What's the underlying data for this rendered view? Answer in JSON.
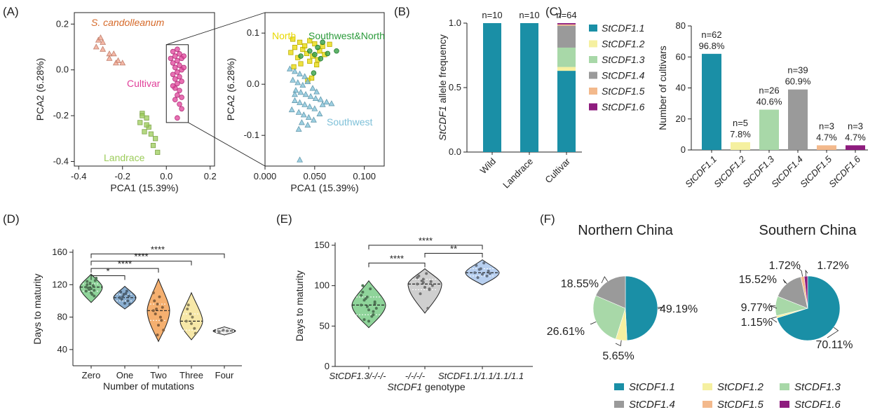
{
  "panels": [
    "(A)",
    "(B)",
    "(C)",
    "(D)",
    "(E)",
    "(F)"
  ],
  "colors": {
    "cdf11": "#1a8fa6",
    "cdf12": "#f5f0a0",
    "cdf13": "#a8d8a8",
    "cdf14": "#9a9a9a",
    "cdf15": "#f3b98c",
    "cdf16": "#8e1c7e",
    "wild": "#f0a08a",
    "landrace": "#9ccc5a",
    "cultivar": "#e0409a",
    "north": "#e8d800",
    "southwest": "#7ec0d8",
    "swnorth": "#2a9a3a",
    "zero": "#8fd49a",
    "one": "#8aaed0",
    "two": "#f5b070",
    "three": "#f7e8a8",
    "four": "#e8e8e8",
    "e_g1": "#8fd49a",
    "e_g2": "#cfcfcf",
    "e_g3": "#b8d0f0"
  },
  "chart_data": [
    {
      "id": "A1",
      "type": "scatter",
      "xlabel": "PCA1 (15.39%)",
      "ylabel": "PCA2 (6.28%)",
      "xlim": [
        -0.42,
        0.22
      ],
      "ylim": [
        -0.42,
        0.25
      ],
      "xticks": [
        "-0.4",
        "-0.2",
        "0.0",
        "0.2"
      ],
      "xtick_values": [
        -0.4,
        -0.2,
        0.0,
        0.2
      ],
      "yticks": [
        "-0.4",
        "-0.2",
        "0.0",
        "0.2"
      ],
      "ytick_values": [
        -0.4,
        -0.2,
        0.0,
        0.2
      ],
      "labels": {
        "wild": "S. candolleanum",
        "cultivar": "Cultivar",
        "landrace": "Landrace"
      },
      "series": [
        {
          "key": "wild",
          "marker": "triangle",
          "points": [
            [
              -0.31,
              0.13
            ],
            [
              -0.29,
              0.12
            ],
            [
              -0.32,
              0.1
            ],
            [
              -0.29,
              0.09
            ],
            [
              -0.26,
              0.07
            ],
            [
              -0.24,
              0.07
            ],
            [
              -0.26,
              0.05
            ],
            [
              -0.22,
              0.04
            ],
            [
              -0.2,
              0.03
            ],
            [
              -0.23,
              0.03
            ],
            [
              -0.3,
              0.14
            ]
          ]
        },
        {
          "key": "landrace",
          "marker": "square",
          "points": [
            [
              -0.11,
              -0.19
            ],
            [
              -0.09,
              -0.21
            ],
            [
              -0.12,
              -0.23
            ],
            [
              -0.08,
              -0.25
            ],
            [
              -0.1,
              -0.27
            ],
            [
              -0.07,
              -0.28
            ],
            [
              -0.05,
              -0.3
            ],
            [
              -0.06,
              -0.33
            ],
            [
              -0.04,
              -0.36
            ],
            [
              -0.09,
              -0.24
            ],
            [
              -0.11,
              -0.2
            ]
          ]
        },
        {
          "key": "cultivar",
          "marker": "circle",
          "points": [
            [
              0.03,
              0.08
            ],
            [
              0.05,
              0.09
            ],
            [
              0.06,
              0.07
            ],
            [
              0.04,
              0.06
            ],
            [
              0.07,
              0.05
            ],
            [
              0.05,
              0.04
            ],
            [
              0.03,
              0.03
            ],
            [
              0.06,
              0.02
            ],
            [
              0.04,
              0.01
            ],
            [
              0.07,
              0.0
            ],
            [
              0.05,
              -0.01
            ],
            [
              0.03,
              -0.02
            ],
            [
              0.06,
              -0.03
            ],
            [
              0.04,
              -0.04
            ],
            [
              0.07,
              -0.05
            ],
            [
              0.05,
              -0.06
            ],
            [
              0.04,
              -0.08
            ],
            [
              0.06,
              -0.09
            ],
            [
              0.05,
              -0.11
            ],
            [
              0.04,
              -0.13
            ],
            [
              0.06,
              -0.15
            ],
            [
              0.07,
              -0.17
            ],
            [
              0.05,
              -0.21
            ],
            [
              0.08,
              0.06
            ],
            [
              0.02,
              0.05
            ],
            [
              0.08,
              0.01
            ],
            [
              0.03,
              -0.07
            ],
            [
              0.07,
              -0.12
            ]
          ]
        }
      ],
      "zoom_box": {
        "xlim": [
          0.0,
          0.1
        ],
        "ylim": [
          -0.23,
          0.11
        ]
      }
    },
    {
      "id": "A2",
      "type": "scatter",
      "xlabel": "PCA1 (15.39%)",
      "ylabel": "PCA2 (6.28%)",
      "xlim": [
        0.0,
        0.12
      ],
      "ylim": [
        -0.16,
        0.14
      ],
      "xticks": [
        "0.000",
        "0.050",
        "0.100"
      ],
      "xtick_values": [
        0.0,
        0.05,
        0.1
      ],
      "yticks": [
        "-0.1",
        "0.0",
        "0.1"
      ],
      "ytick_values": [
        -0.1,
        0.0,
        0.1
      ],
      "labels": {
        "north": "North",
        "swnorth": "Southwest&North",
        "southwest": "Southwest"
      },
      "series": [
        {
          "key": "north",
          "marker": "square",
          "points": [
            [
              0.028,
              0.088
            ],
            [
              0.035,
              0.082
            ],
            [
              0.045,
              0.085
            ],
            [
              0.05,
              0.079
            ],
            [
              0.03,
              0.072
            ],
            [
              0.038,
              0.068
            ],
            [
              0.055,
              0.065
            ],
            [
              0.026,
              0.062
            ],
            [
              0.042,
              0.06
            ],
            [
              0.048,
              0.055
            ],
            [
              0.06,
              0.058
            ],
            [
              0.033,
              0.052
            ],
            [
              0.053,
              0.048
            ],
            [
              0.045,
              0.045
            ],
            [
              0.036,
              0.04
            ],
            [
              0.052,
              0.038
            ],
            [
              0.029,
              0.034
            ],
            [
              0.058,
              0.074
            ],
            [
              0.04,
              0.075
            ],
            [
              0.047,
              0.012
            ],
            [
              0.043,
              0.008
            ],
            [
              0.065,
              0.078
            ]
          ]
        },
        {
          "key": "swnorth",
          "marker": "circle",
          "points": [
            [
              0.058,
              0.082
            ],
            [
              0.053,
              0.072
            ],
            [
              0.045,
              0.065
            ],
            [
              0.05,
              0.058
            ],
            [
              0.063,
              0.06
            ],
            [
              0.072,
              0.065
            ],
            [
              0.036,
              0.055
            ],
            [
              0.049,
              0.022
            ],
            [
              0.056,
              0.05
            ]
          ]
        },
        {
          "key": "southwest",
          "marker": "triangle",
          "points": [
            [
              0.025,
              0.03
            ],
            [
              0.03,
              0.025
            ],
            [
              0.035,
              0.02
            ],
            [
              0.04,
              0.015
            ],
            [
              0.028,
              0.008
            ],
            [
              0.033,
              0.003
            ],
            [
              0.038,
              -0.002
            ],
            [
              0.043,
              0.005
            ],
            [
              0.048,
              -0.008
            ],
            [
              0.031,
              -0.012
            ],
            [
              0.036,
              -0.016
            ],
            [
              0.041,
              -0.02
            ],
            [
              0.046,
              -0.024
            ],
            [
              0.051,
              -0.028
            ],
            [
              0.056,
              -0.03
            ],
            [
              0.03,
              -0.032
            ],
            [
              0.035,
              -0.036
            ],
            [
              0.04,
              -0.04
            ],
            [
              0.045,
              -0.044
            ],
            [
              0.05,
              -0.048
            ],
            [
              0.058,
              -0.04
            ],
            [
              0.062,
              -0.035
            ],
            [
              0.067,
              -0.038
            ],
            [
              0.034,
              -0.055
            ],
            [
              0.039,
              -0.06
            ],
            [
              0.044,
              -0.065
            ],
            [
              0.049,
              -0.07
            ],
            [
              0.055,
              -0.058
            ],
            [
              0.037,
              -0.075
            ],
            [
              0.043,
              -0.08
            ],
            [
              0.034,
              -0.088
            ],
            [
              0.03,
              -0.02
            ],
            [
              0.052,
              -0.015
            ],
            [
              0.027,
              -0.05
            ],
            [
              0.035,
              -0.148
            ]
          ]
        }
      ]
    },
    {
      "id": "B",
      "type": "bar",
      "stacked": true,
      "ylabel": "StCDF1 allele frequency",
      "categories": [
        "Wild",
        "Landrace",
        "Cultivar"
      ],
      "top_labels": [
        "n=10",
        "n=10",
        "n=64"
      ],
      "ylim": [
        0,
        1.0
      ],
      "yticks": [
        "0.0",
        "0.5",
        "1.0"
      ],
      "ytick_values": [
        0,
        0.5,
        1.0
      ],
      "series": [
        {
          "name": "StCDF1.1",
          "key": "cdf11",
          "values": [
            1.0,
            1.0,
            0.63
          ]
        },
        {
          "name": "StCDF1.2",
          "key": "cdf12",
          "values": [
            0,
            0,
            0.03
          ]
        },
        {
          "name": "StCDF1.3",
          "key": "cdf13",
          "values": [
            0,
            0,
            0.15
          ]
        },
        {
          "name": "StCDF1.4",
          "key": "cdf14",
          "values": [
            0,
            0,
            0.17
          ]
        },
        {
          "name": "StCDF1.5",
          "key": "cdf15",
          "values": [
            0,
            0,
            0.01
          ]
        },
        {
          "name": "StCDF1.6",
          "key": "cdf16",
          "values": [
            0,
            0,
            0.01
          ]
        }
      ]
    },
    {
      "id": "C",
      "type": "bar",
      "ylabel": "Number of cultivars",
      "categories": [
        "StCDF1.1",
        "StCDF1.2",
        "StCDF1.3",
        "StCDF1.4",
        "StCDF1.5",
        "StCDF1.6"
      ],
      "values": [
        62,
        5,
        26,
        39,
        3,
        3
      ],
      "count_labels": [
        "n=62",
        "n=5",
        "n=26",
        "n=39",
        "n=3",
        "n=3"
      ],
      "pct_labels": [
        "96.8%",
        "7.8%",
        "40.6%",
        "60.9%",
        "4.7%",
        "4.7%"
      ],
      "keys": [
        "cdf11",
        "cdf12",
        "cdf13",
        "cdf14",
        "cdf15",
        "cdf16"
      ],
      "ylim": [
        0,
        80
      ],
      "yticks": [
        "0",
        "20",
        "40",
        "60",
        "80"
      ],
      "ytick_values": [
        0,
        20,
        40,
        60,
        80
      ]
    },
    {
      "id": "D",
      "type": "violin",
      "xlabel": "Number of mutations",
      "ylabel": "Days to maturity",
      "categories": [
        "Zero",
        "One",
        "Two",
        "Three",
        "Four"
      ],
      "keys": [
        "zero",
        "one",
        "two",
        "three",
        "four"
      ],
      "ylim": [
        20,
        160
      ],
      "yticks": [
        "40",
        "80",
        "120",
        "160"
      ],
      "ytick_values": [
        40,
        80,
        120,
        160
      ],
      "violins": [
        {
          "min": 98,
          "max": 133,
          "median": 117,
          "q1": 112,
          "q3": 121
        },
        {
          "min": 90,
          "max": 118,
          "median": 104,
          "q1": 100,
          "q3": 108
        },
        {
          "min": 50,
          "max": 127,
          "median": 88,
          "q1": 76,
          "q3": 96
        },
        {
          "min": 52,
          "max": 110,
          "median": 75,
          "q1": 64,
          "q3": 84
        },
        {
          "min": 58,
          "max": 68,
          "median": 63,
          "q1": 61,
          "q3": 65
        }
      ],
      "points": [
        [
          117,
          122,
          113,
          120,
          110,
          125,
          116,
          108,
          128,
          114,
          119,
          112,
          121,
          106,
          124,
          115
        ],
        [
          104,
          108,
          100,
          111,
          97,
          106,
          102,
          109,
          96,
          105,
          112
        ],
        [
          88,
          96,
          76,
          100,
          70,
          92,
          84,
          105,
          64,
          90,
          80,
          110,
          58
        ],
        [
          75,
          84,
          66,
          90,
          72,
          60,
          95,
          80
        ],
        [
          62,
          64,
          63
        ]
      ],
      "significance": [
        {
          "pair": [
            0,
            1
          ],
          "label": "*",
          "level": 131
        },
        {
          "pair": [
            0,
            2
          ],
          "label": "****",
          "level": 140
        },
        {
          "pair": [
            0,
            3
          ],
          "label": "****",
          "level": 149
        },
        {
          "pair": [
            0,
            4
          ],
          "label": "****",
          "level": 158
        }
      ]
    },
    {
      "id": "E",
      "type": "violin",
      "xlabel": "StCDF1 genotype",
      "ylabel": "Days to maturity",
      "categories": [
        "StCDF1.3/-/-/-",
        "-/-/-/-",
        "StCDF1.1/1.1/1.1/1.1"
      ],
      "keys": [
        "e_g1",
        "e_g2",
        "e_g3"
      ],
      "ylim": [
        0,
        150
      ],
      "yticks": [
        "0",
        "50",
        "100",
        "150"
      ],
      "ytick_values": [
        0,
        50,
        100,
        150
      ],
      "violins": [
        {
          "min": 48,
          "max": 106,
          "median": 76,
          "q1": 64,
          "q3": 86
        },
        {
          "min": 66,
          "max": 121,
          "median": 102,
          "q1": 95,
          "q3": 108
        },
        {
          "min": 101,
          "max": 132,
          "median": 116,
          "q1": 112,
          "q3": 121
        }
      ],
      "points": [
        [
          76,
          86,
          64,
          92,
          70,
          80,
          58,
          96,
          72,
          84,
          62,
          88,
          74,
          68,
          100,
          56,
          78,
          82
        ],
        [
          102,
          108,
          95,
          112,
          98,
          105,
          90,
          115,
          100,
          106,
          72,
          110,
          104,
          96
        ],
        [
          116,
          121,
          112,
          125,
          114,
          118,
          110,
          128,
          115,
          120
        ]
      ],
      "significance": [
        {
          "pair": [
            0,
            1
          ],
          "label": "****",
          "level": 128
        },
        {
          "pair": [
            1,
            2
          ],
          "label": "**",
          "level": 140
        },
        {
          "pair": [
            0,
            2
          ],
          "label": "****",
          "level": 150
        }
      ]
    },
    {
      "id": "F1",
      "type": "pie",
      "title": "Northern China",
      "slices": [
        {
          "key": "cdf11",
          "value": 49.19,
          "label": "49.19%"
        },
        {
          "key": "cdf12",
          "value": 5.65,
          "label": "5.65%"
        },
        {
          "key": "cdf13",
          "value": 26.61,
          "label": "26.61%"
        },
        {
          "key": "cdf14",
          "value": 18.55,
          "label": "18.55%"
        }
      ]
    },
    {
      "id": "F2",
      "type": "pie",
      "title": "Southern China",
      "slices": [
        {
          "key": "cdf11",
          "value": 70.11,
          "label": "70.11%"
        },
        {
          "key": "cdf12",
          "value": 1.15,
          "label": "1.15%"
        },
        {
          "key": "cdf13",
          "value": 9.77,
          "label": "9.77%"
        },
        {
          "key": "cdf14",
          "value": 15.52,
          "label": "15.52%"
        },
        {
          "key": "cdf15",
          "value": 1.72,
          "label": "1.72%"
        },
        {
          "key": "cdf16",
          "value": 1.72,
          "label": "1.72%"
        }
      ]
    }
  ],
  "legend_F": [
    {
      "name": "StCDF1.1",
      "key": "cdf11"
    },
    {
      "name": "StCDF1.2",
      "key": "cdf12"
    },
    {
      "name": "StCDF1.3",
      "key": "cdf13"
    },
    {
      "name": "StCDF1.4",
      "key": "cdf14"
    },
    {
      "name": "StCDF1.5",
      "key": "cdf15"
    },
    {
      "name": "StCDF1.6",
      "key": "cdf16"
    }
  ]
}
